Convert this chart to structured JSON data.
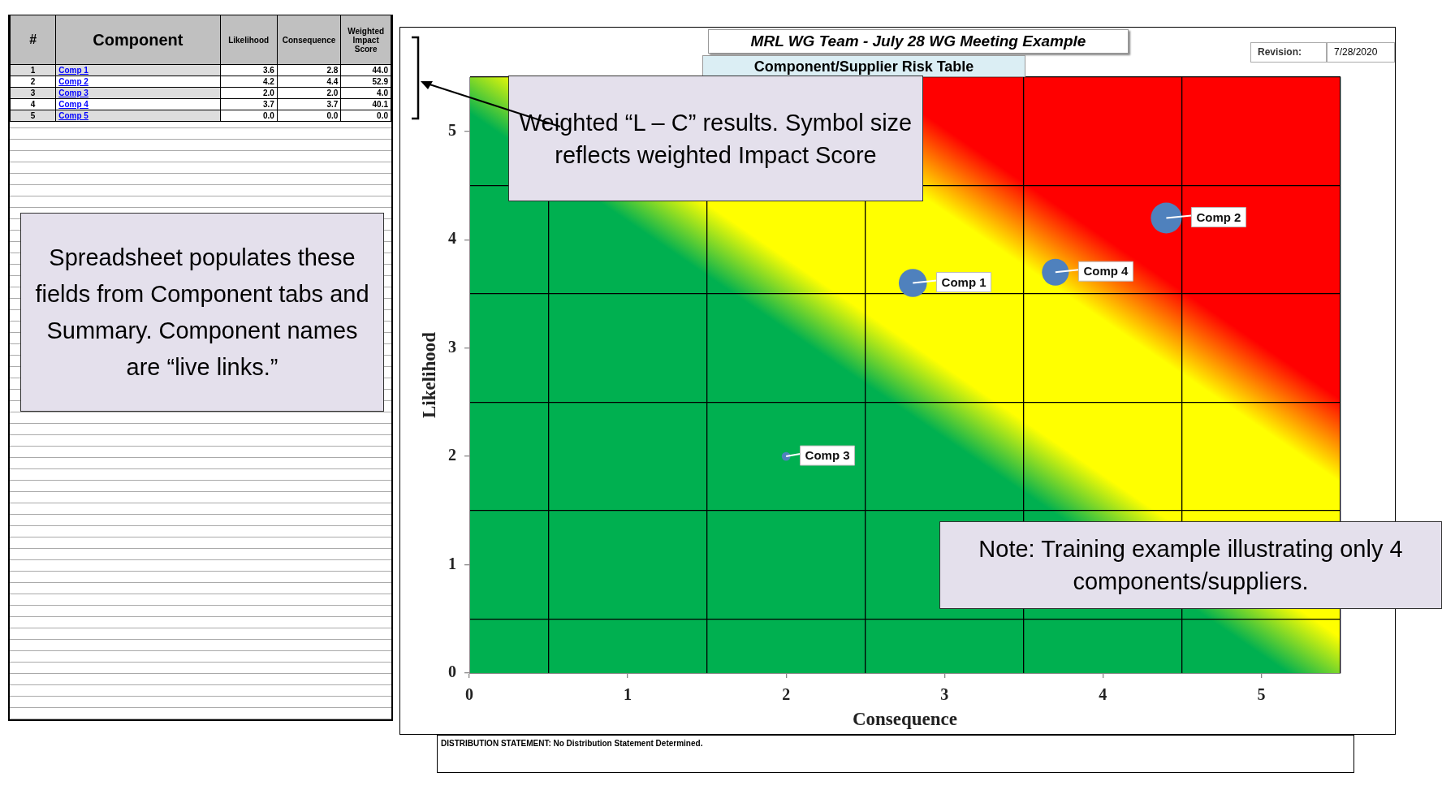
{
  "chart_data": {
    "type": "bubble",
    "title": "MRL WG Team - July 28 WG Meeting Example",
    "subtitle": "Component/Supplier Risk Table",
    "xlabel": "Consequence",
    "ylabel": "Likelihood",
    "xlim": [
      0,
      5.5
    ],
    "ylim": [
      0,
      5.5
    ],
    "xticks": [
      0,
      {
        "value": 0.5,
        "label": null
      },
      1,
      {
        "value": 1.5,
        "label": null
      },
      2,
      {
        "value": 2.5,
        "label": null
      },
      3,
      {
        "value": 3.5,
        "label": null
      },
      4,
      {
        "value": 4.5,
        "label": null
      },
      5,
      {
        "value": 5.5,
        "label": null
      }
    ],
    "yticks": [
      0,
      {
        "value": 0.5,
        "label": null
      },
      1,
      {
        "value": 1.5,
        "label": null
      },
      2,
      {
        "value": 2.5,
        "label": null
      },
      3,
      {
        "value": 3.5,
        "label": null
      },
      4,
      {
        "value": 4.5,
        "label": null
      },
      5,
      {
        "value": 5.5,
        "label": null
      }
    ],
    "grid": true,
    "legend": false,
    "marker": "circle",
    "series": [
      {
        "name": "Comp 1",
        "color": "#4f81bd",
        "x": [
          2.8
        ],
        "values": [
          3.6
        ],
        "sizes": [
          0.83
        ]
      },
      {
        "name": "Comp 2",
        "color": "#4f81bd",
        "x": [
          4.4
        ],
        "values": [
          4.2
        ],
        "sizes": [
          1
        ]
      },
      {
        "name": "Comp 3",
        "color": "#4f81bd",
        "x": [
          2.0
        ],
        "values": [
          2.0
        ],
        "sizes": [
          0.08
        ]
      },
      {
        "name": "Comp 4",
        "color": "#4f81bd",
        "x": [
          3.7
        ],
        "values": [
          3.7
        ],
        "sizes": [
          0.76
        ]
      }
    ],
    "annotations": [
      "Weighted “L – C” results. Symbol size reflects weighted Impact Score",
      "Spreadsheet populates these fields from Component tabs and Summary. Component names are “live links.”",
      "Note: Training example illustrating only 4 components/suppliers.",
      "DISTRIBUTION STATEMENT: No Distribution Statement Determined.",
      "Revision:",
      "7/28/2020",
      "#",
      "Component",
      "Likelihood",
      "Consequence",
      "Weighted Impact Score",
      "1",
      "Comp 1",
      "3.6",
      "2.8",
      "44.0",
      "2",
      "Comp 2",
      "4.2",
      "4.4",
      "52.9",
      "3",
      "Comp 3",
      "2.0",
      "2.0",
      "4.0",
      "4",
      "Comp 4",
      "3.7",
      "3.7",
      "40.1",
      "5",
      "Comp 5",
      "0.0",
      "0.0",
      "0.0"
    ]
  }
}
